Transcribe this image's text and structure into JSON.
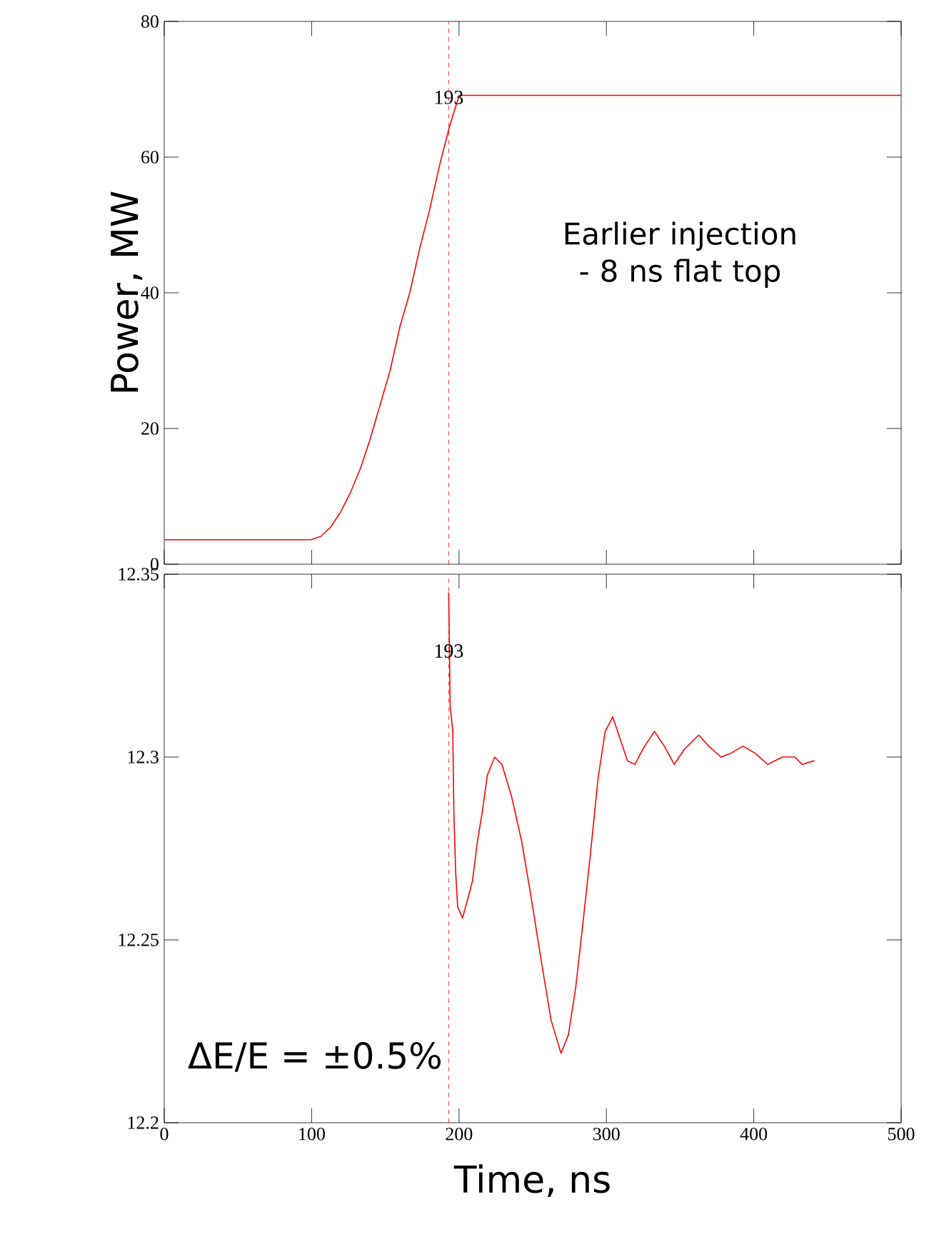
{
  "chart_data": [
    {
      "type": "line",
      "ylabel": "Power, MW",
      "x": [
        0,
        99.6,
        106.3,
        113,
        119.7,
        126.4,
        133.1,
        139.8,
        146.5,
        153.2,
        159.9,
        166.6,
        173.3,
        180,
        186.7,
        193.4,
        200.1,
        500
      ],
      "series": [
        {
          "color": "#ff0000",
          "values": [
            3.6,
            3.6,
            4.1,
            5.5,
            7.7,
            10.6,
            14.1,
            18.5,
            23.5,
            28.5,
            35,
            40,
            46.5,
            52.2,
            58.7,
            64.4,
            69.1,
            69.1
          ]
        }
      ],
      "xlim": [
        0,
        500
      ],
      "ylim": [
        0,
        80
      ],
      "xticks": [
        0,
        100,
        200,
        300,
        400,
        500
      ],
      "yticks": [
        0,
        20,
        40,
        60,
        80
      ],
      "tick_labels": "y",
      "marker": "none",
      "ref_lines": [
        {
          "axis": "x",
          "value": 193,
          "label": "193",
          "color": "#ff0000",
          "line_style": "dashed"
        }
      ],
      "annotations": [
        "Earlier injection - 8 ns flat top"
      ]
    },
    {
      "type": "line",
      "xlabel": "Time, ns",
      "x": [
        193,
        194,
        195.8,
        196.5,
        197.8,
        199.1,
        202.4,
        205.8,
        209.1,
        212.5,
        215.8,
        219.2,
        224.2,
        229.1,
        235.8,
        242.5,
        249.2,
        255.9,
        262.5,
        269.2,
        274.2,
        279.2,
        284.2,
        289.3,
        294.3,
        299.2,
        304.3,
        309.3,
        314.3,
        319.3,
        326,
        332.6,
        339.3,
        346,
        352.7,
        362.7,
        369.4,
        377.7,
        384.4,
        392.7,
        401.1,
        409.4,
        419.5,
        427.8,
        432.8,
        441.1
      ],
      "series": [
        {
          "color": "#ff0000",
          "values": [
            12.345,
            12.314,
            12.307,
            12.285,
            12.268,
            12.259,
            12.256,
            12.261,
            12.266,
            12.277,
            12.285,
            12.295,
            12.3,
            12.298,
            12.289,
            12.277,
            12.261,
            12.244,
            12.228,
            12.219,
            12.224,
            12.237,
            12.255,
            12.274,
            12.294,
            12.307,
            12.311,
            12.305,
            12.299,
            12.298,
            12.303,
            12.307,
            12.303,
            12.298,
            12.302,
            12.306,
            12.303,
            12.3,
            12.301,
            12.303,
            12.301,
            12.298,
            12.3,
            12.3,
            12.298,
            12.299
          ]
        }
      ],
      "xlim": [
        0,
        500
      ],
      "ylim": [
        12.2,
        12.35
      ],
      "xticks": [
        0,
        100,
        200,
        300,
        400,
        500
      ],
      "yticks": [
        12.2,
        12.25,
        12.3,
        12.35
      ],
      "marker": "none",
      "ref_lines": [
        {
          "axis": "x",
          "value": 193,
          "label": "193",
          "color": "#ff0000",
          "line_style": "dashed"
        }
      ],
      "annotations": [
        "ΔE/E = ±0.5%"
      ]
    }
  ]
}
